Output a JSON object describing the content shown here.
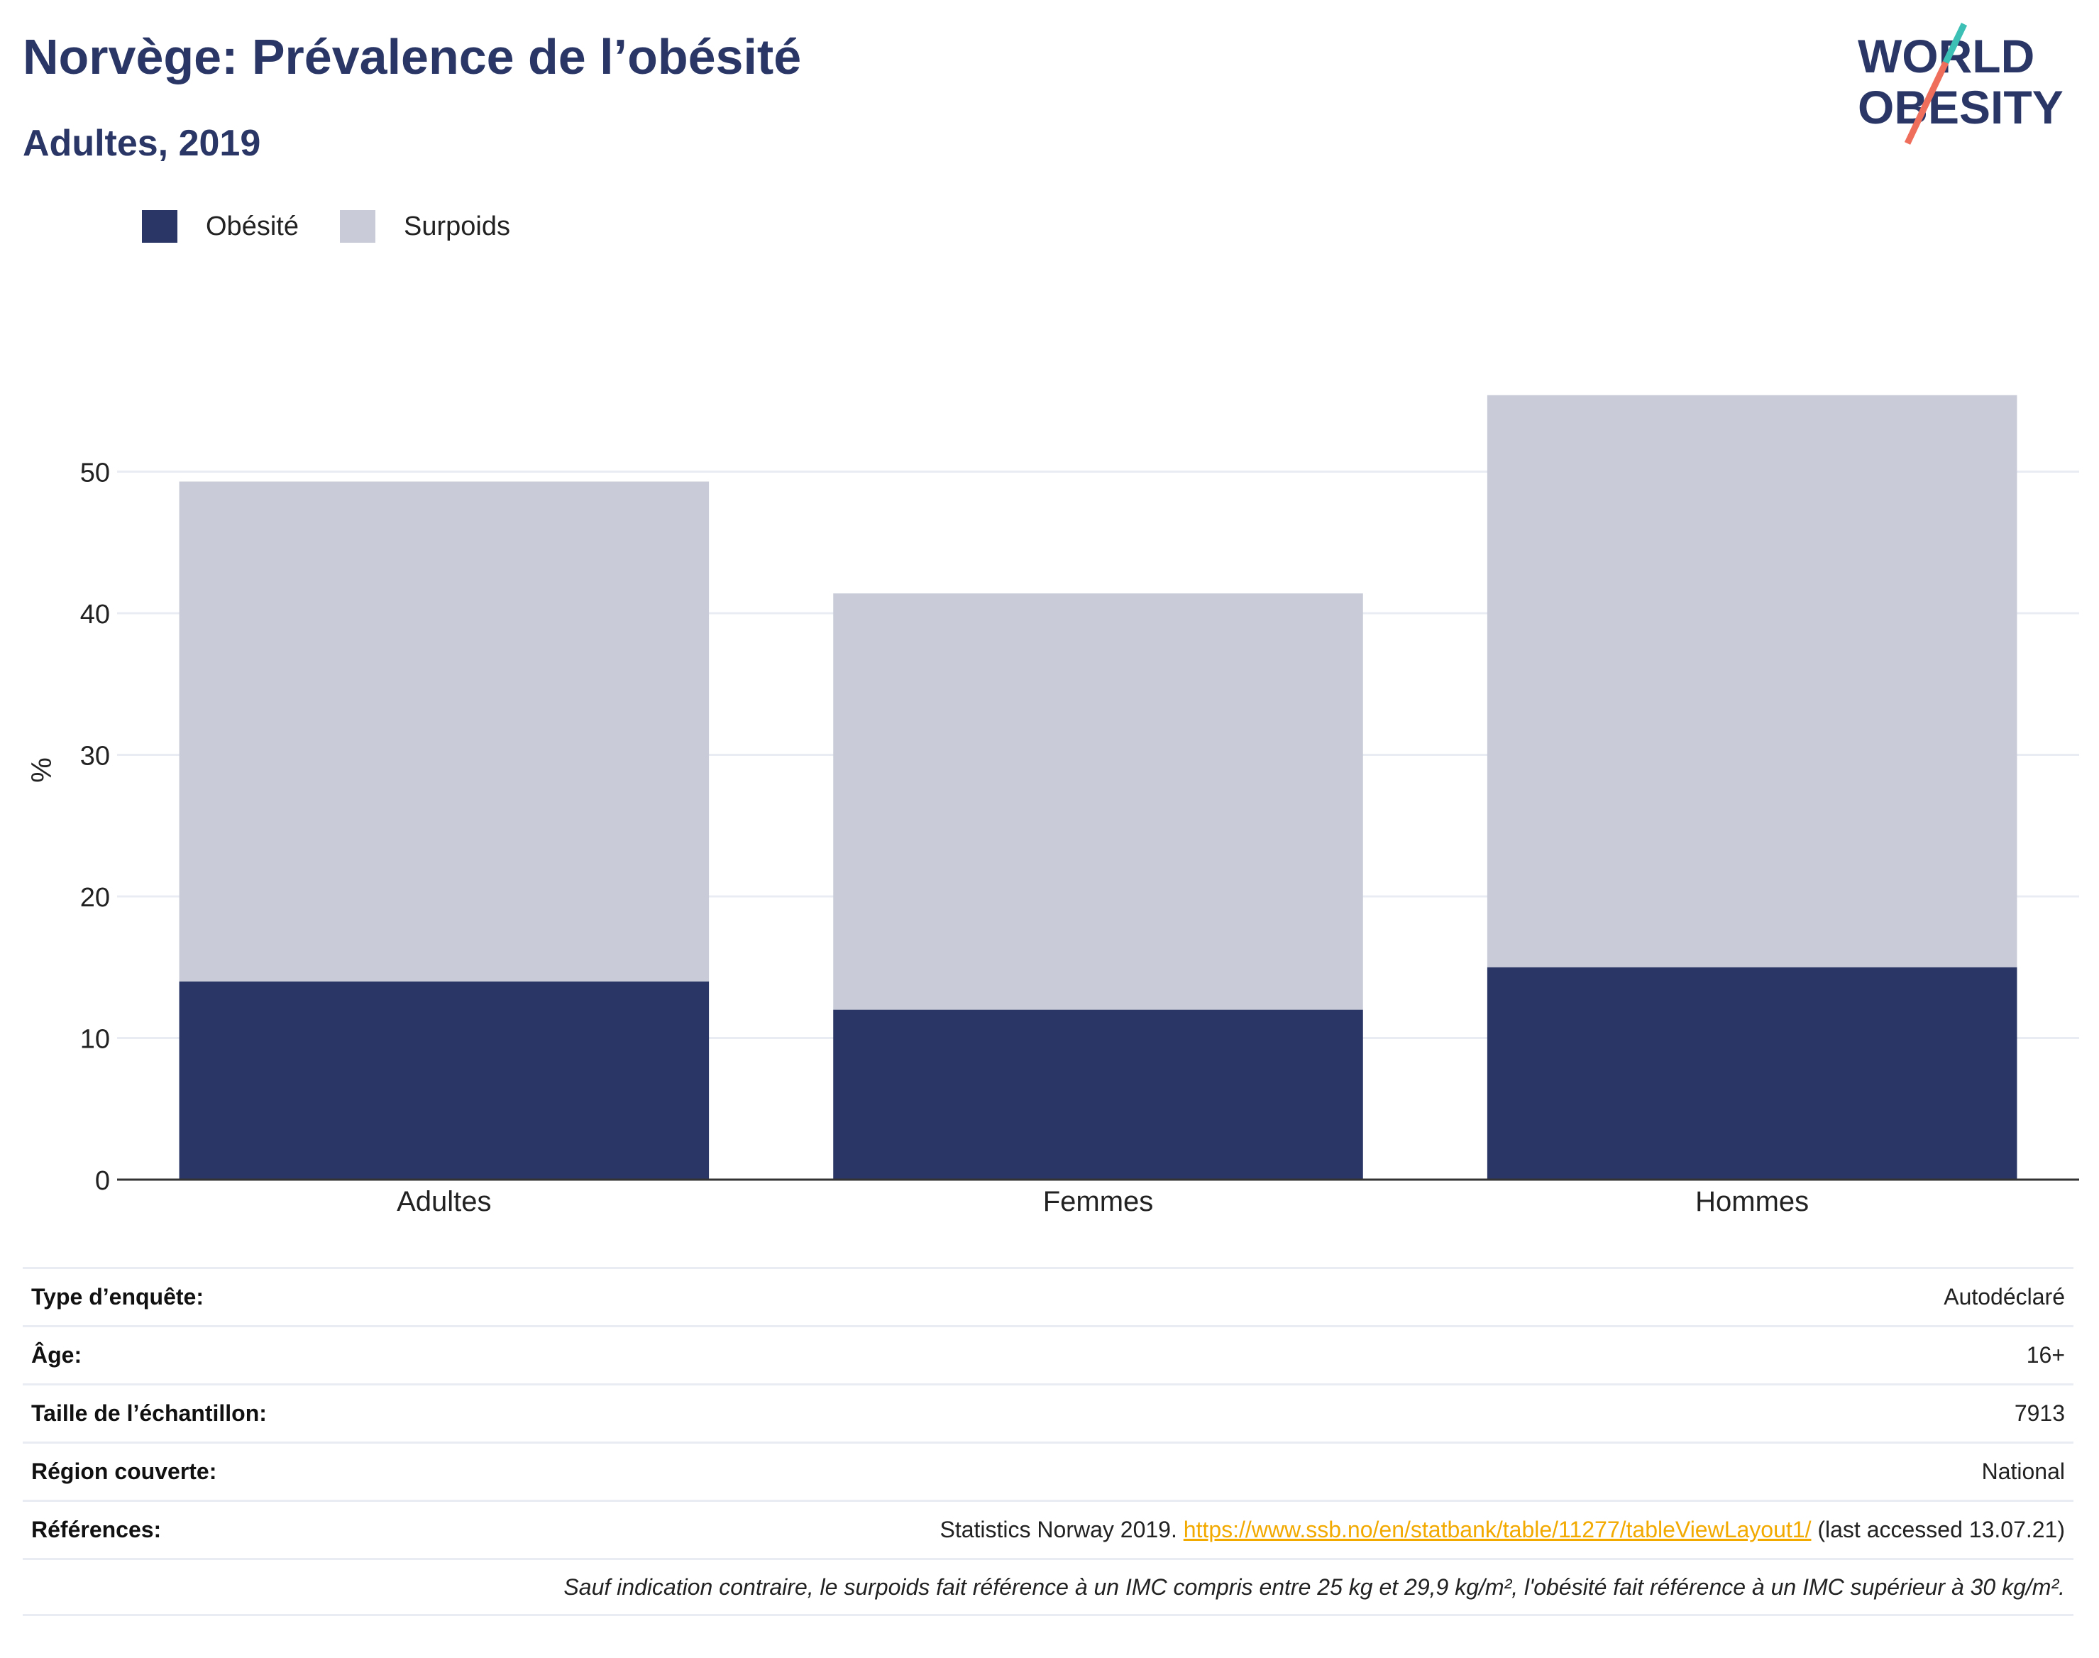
{
  "header": {
    "title": "Norvège: Prévalence de l’obésité",
    "subtitle": "Adultes, 2019"
  },
  "logo": {
    "line1": "WORLD",
    "line2": "OBESITY",
    "colors": {
      "navy": "#2a3766",
      "teal": "#3cbfb4",
      "coral": "#ef6e5b"
    }
  },
  "colors": {
    "obesity": "#2a3766",
    "overweight": "#c9ccd8",
    "grid": "#e9ecf3",
    "axis": "#333333"
  },
  "chart_data": {
    "type": "bar",
    "stacked": true,
    "title": "",
    "xlabel": "",
    "ylabel": "%",
    "categories": [
      "Adultes",
      "Femmes",
      "Hommes"
    ],
    "series": [
      {
        "name": "Obésité",
        "values": [
          14,
          12,
          15
        ]
      },
      {
        "name": "Surpoids",
        "values": [
          35.3,
          29.4,
          40.4
        ]
      }
    ],
    "yticks": [
      0,
      10,
      20,
      30,
      40,
      50
    ],
    "ylim": [
      0,
      60
    ],
    "grid": true,
    "legend_position": "top-left"
  },
  "info": {
    "rows": [
      {
        "label": "Type d’enquête:",
        "value": "Autodéclaré"
      },
      {
        "label": "Âge:",
        "value": "16+"
      },
      {
        "label": "Taille de l’échantillon:",
        "value": "7913"
      },
      {
        "label": "Région couverte:",
        "value": "National"
      }
    ],
    "references": {
      "label": "Références:",
      "prefix": "Statistics Norway 2019. ",
      "link": "https://www.ssb.no/en/statbank/table/11277/tableViewLayout1/",
      "suffix": " (last accessed 13.07.21)"
    },
    "note": "Sauf indication contraire, le surpoids fait référence à un IMC compris entre 25 kg et 29,9 kg/m², l'obésité fait référence à un IMC supérieur à 30 kg/m²."
  }
}
